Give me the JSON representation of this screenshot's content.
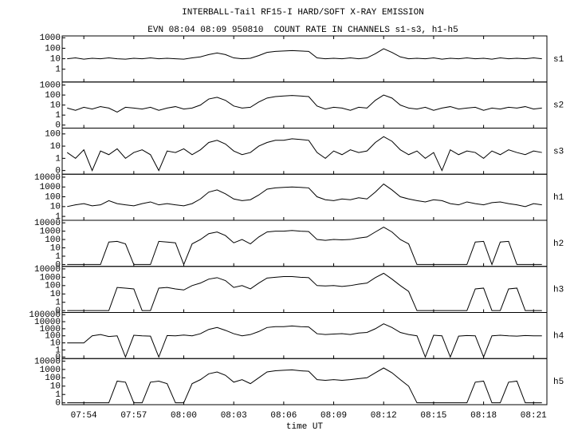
{
  "chart_data": [
    {
      "type": "line",
      "title": "INTERBALL-Tail RF15-I HARD/SOFT X-RAY EMISSION",
      "subtitle": "EVN 08:04 08:09 950810  COUNT RATE IN CHANNELS s1-s3, h1-h5",
      "label": "s1",
      "color": "#000000",
      "log": true,
      "x": [
        53,
        53.5,
        54,
        54.5,
        55,
        55.5,
        56,
        56.5,
        57,
        57.5,
        58,
        58.5,
        59,
        59.5,
        60,
        60.5,
        61,
        61.5,
        62,
        62.5,
        63,
        63.5,
        64,
        64.5,
        65,
        65.5,
        66,
        66.5,
        67,
        67.5,
        68,
        68.5,
        69,
        69.5,
        70,
        70.5,
        71,
        71.5,
        72,
        72.5,
        73,
        73.5,
        74,
        74.5,
        75,
        75.5,
        76,
        76.5,
        77,
        77.5,
        78,
        78.5,
        79,
        79.5,
        80,
        80.5,
        81,
        81.5
      ],
      "values": [
        10,
        12,
        9,
        11,
        10,
        12,
        10,
        9,
        11,
        10,
        12,
        10,
        11,
        10,
        9,
        12,
        15,
        25,
        35,
        25,
        12,
        10,
        11,
        20,
        40,
        50,
        55,
        60,
        55,
        50,
        12,
        10,
        11,
        10,
        12,
        10,
        12,
        30,
        90,
        40,
        15,
        10,
        11,
        10,
        12,
        9,
        11,
        10,
        12,
        10,
        11,
        9,
        12,
        10,
        11,
        10,
        12,
        10
      ],
      "xlim": [
        52.7,
        81.8
      ],
      "ylim": [
        0.06,
        1500
      ],
      "yticks": [
        1,
        10,
        100,
        1000
      ]
    },
    {
      "type": "line",
      "label": "s2",
      "color": "#000000",
      "log": true,
      "x": [
        53,
        53.5,
        54,
        54.5,
        55,
        55.5,
        56,
        56.5,
        57,
        57.5,
        58,
        58.5,
        59,
        59.5,
        60,
        60.5,
        61,
        61.5,
        62,
        62.5,
        63,
        63.5,
        64,
        64.5,
        65,
        65.5,
        66,
        66.5,
        67,
        67.5,
        68,
        68.5,
        69,
        69.5,
        70,
        70.5,
        71,
        71.5,
        72,
        72.5,
        73,
        73.5,
        74,
        74.5,
        75,
        75.5,
        76,
        76.5,
        77,
        77.5,
        78,
        78.5,
        79,
        79.5,
        80,
        80.5,
        81,
        81.5
      ],
      "values": [
        5,
        3,
        6,
        4,
        7,
        5,
        2,
        6,
        5,
        4,
        6,
        3,
        5,
        7,
        4,
        5,
        10,
        40,
        60,
        30,
        8,
        5,
        6,
        20,
        50,
        70,
        80,
        90,
        80,
        70,
        8,
        4,
        6,
        5,
        3,
        6,
        5,
        30,
        100,
        50,
        10,
        5,
        4,
        6,
        3,
        5,
        7,
        4,
        5,
        6,
        3,
        5,
        4,
        6,
        5,
        7,
        4,
        5
      ],
      "xlim": [
        52.7,
        81.8
      ],
      "ylim": [
        0.05,
        2000
      ],
      "yticks": [
        {
          "value": 0.1,
          "label": "0"
        },
        1,
        10,
        100,
        1000
      ]
    },
    {
      "type": "line",
      "label": "s3",
      "color": "#000000",
      "log": true,
      "x": [
        53,
        53.5,
        54,
        54.5,
        55,
        55.5,
        56,
        56.5,
        57,
        57.5,
        58,
        58.5,
        59,
        59.5,
        60,
        60.5,
        61,
        61.5,
        62,
        62.5,
        63,
        63.5,
        64,
        64.5,
        65,
        65.5,
        66,
        66.5,
        67,
        67.5,
        68,
        68.5,
        69,
        69.5,
        70,
        70.5,
        71,
        71.5,
        72,
        72.5,
        73,
        73.5,
        74,
        74.5,
        75,
        75.5,
        76,
        76.5,
        77,
        77.5,
        78,
        78.5,
        79,
        79.5,
        80,
        80.5,
        81,
        81.5
      ],
      "values": [
        3,
        1,
        5,
        0.1,
        4,
        2,
        6,
        1,
        3,
        5,
        2,
        0.1,
        4,
        3,
        6,
        2,
        5,
        20,
        30,
        15,
        4,
        2,
        3,
        10,
        20,
        30,
        30,
        40,
        35,
        30,
        3,
        1,
        4,
        2,
        5,
        3,
        4,
        20,
        60,
        25,
        5,
        2,
        4,
        1,
        3,
        0.1,
        5,
        2,
        4,
        3,
        1,
        4,
        2,
        5,
        3,
        2,
        4,
        3
      ],
      "xlim": [
        52.7,
        81.8
      ],
      "ylim": [
        0.05,
        300
      ],
      "yticks": [
        {
          "value": 0.1,
          "label": "0"
        },
        1,
        10,
        100
      ]
    },
    {
      "type": "line",
      "label": "h1",
      "color": "#000000",
      "log": true,
      "x": [
        53,
        53.5,
        54,
        54.5,
        55,
        55.5,
        56,
        56.5,
        57,
        57.5,
        58,
        58.5,
        59,
        59.5,
        60,
        60.5,
        61,
        61.5,
        62,
        62.5,
        63,
        63.5,
        64,
        64.5,
        65,
        65.5,
        66,
        66.5,
        67,
        67.5,
        68,
        68.5,
        69,
        69.5,
        70,
        70.5,
        71,
        71.5,
        72,
        72.5,
        73,
        73.5,
        74,
        74.5,
        75,
        75.5,
        76,
        76.5,
        77,
        77.5,
        78,
        78.5,
        79,
        79.5,
        80,
        80.5,
        81,
        81.5
      ],
      "values": [
        10,
        15,
        20,
        12,
        15,
        40,
        20,
        15,
        12,
        20,
        30,
        15,
        20,
        15,
        12,
        20,
        60,
        300,
        500,
        200,
        60,
        40,
        50,
        150,
        600,
        800,
        900,
        1000,
        900,
        800,
        100,
        50,
        40,
        60,
        50,
        80,
        60,
        300,
        2000,
        500,
        100,
        60,
        40,
        30,
        50,
        40,
        20,
        15,
        30,
        20,
        15,
        25,
        30,
        20,
        15,
        10,
        20,
        15
      ],
      "xlim": [
        52.7,
        81.8
      ],
      "ylim": [
        0.4,
        20000
      ],
      "yticks": [
        1,
        10,
        100,
        1000,
        10000
      ]
    },
    {
      "type": "line",
      "label": "h2",
      "color": "#000000",
      "log": true,
      "x": [
        53,
        53.5,
        54,
        54.5,
        55,
        55.5,
        56,
        56.5,
        57,
        57.5,
        58,
        58.5,
        59,
        59.5,
        60,
        60.5,
        61,
        61.5,
        62,
        62.5,
        63,
        63.5,
        64,
        64.5,
        65,
        65.5,
        66,
        66.5,
        67,
        67.5,
        68,
        68.5,
        69,
        69.5,
        70,
        70.5,
        71,
        71.5,
        72,
        72.5,
        73,
        73.5,
        74,
        74.5,
        75,
        75.5,
        76,
        76.5,
        77,
        77.5,
        78,
        78.5,
        79,
        79.5,
        80,
        80.5,
        81,
        81.5
      ],
      "values": [
        0.1,
        0.1,
        0.1,
        0.1,
        0.1,
        50,
        60,
        30,
        0.1,
        0.1,
        0.1,
        60,
        50,
        40,
        0.1,
        30,
        100,
        500,
        800,
        300,
        40,
        100,
        30,
        200,
        800,
        1000,
        1000,
        1200,
        1000,
        900,
        100,
        80,
        100,
        90,
        100,
        150,
        200,
        800,
        3000,
        800,
        100,
        30,
        0.1,
        0.1,
        0.1,
        0.1,
        0.1,
        0.1,
        0.1,
        50,
        60,
        0.1,
        50,
        60,
        0.1,
        0.1,
        0.1,
        0.1
      ],
      "xlim": [
        52.7,
        81.8
      ],
      "ylim": [
        0.06,
        20000
      ],
      "yticks": [
        {
          "value": 0.1,
          "label": "0"
        },
        1,
        10,
        100,
        1000,
        10000
      ]
    },
    {
      "type": "line",
      "label": "h3",
      "color": "#000000",
      "log": true,
      "x": [
        53,
        53.5,
        54,
        54.5,
        55,
        55.5,
        56,
        56.5,
        57,
        57.5,
        58,
        58.5,
        59,
        59.5,
        60,
        60.5,
        61,
        61.5,
        62,
        62.5,
        63,
        63.5,
        64,
        64.5,
        65,
        65.5,
        66,
        66.5,
        67,
        67.5,
        68,
        68.5,
        69,
        69.5,
        70,
        70.5,
        71,
        71.5,
        72,
        72.5,
        73,
        73.5,
        74,
        74.5,
        75,
        75.5,
        76,
        76.5,
        77,
        77.5,
        78,
        78.5,
        79,
        79.5,
        80,
        80.5,
        81,
        81.5
      ],
      "values": [
        0.1,
        0.1,
        0.1,
        0.1,
        0.1,
        0.1,
        60,
        50,
        40,
        0.1,
        0.1,
        50,
        60,
        40,
        30,
        100,
        200,
        600,
        900,
        400,
        60,
        100,
        40,
        200,
        800,
        1000,
        1200,
        1200,
        1000,
        900,
        100,
        90,
        100,
        80,
        100,
        150,
        200,
        900,
        3000,
        600,
        100,
        20,
        0.1,
        0.1,
        0.1,
        0.1,
        0.1,
        0.1,
        0.1,
        40,
        50,
        0.1,
        0.1,
        40,
        50,
        0.1,
        0.1,
        0.1
      ],
      "xlim": [
        52.7,
        81.8
      ],
      "ylim": [
        0.06,
        20000
      ],
      "yticks": [
        {
          "value": 0.1,
          "label": "0"
        },
        1,
        10,
        100,
        1000,
        10000
      ]
    },
    {
      "type": "line",
      "label": "h4",
      "color": "#000000",
      "log": true,
      "x": [
        53,
        53.5,
        54,
        54.5,
        55,
        55.5,
        56,
        56.5,
        57,
        57.5,
        58,
        58.5,
        59,
        59.5,
        60,
        60.5,
        61,
        61.5,
        62,
        62.5,
        63,
        63.5,
        64,
        64.5,
        65,
        65.5,
        66,
        66.5,
        67,
        67.5,
        68,
        68.5,
        69,
        69.5,
        70,
        70.5,
        71,
        71.5,
        72,
        72.5,
        73,
        73.5,
        74,
        74.5,
        75,
        75.5,
        76,
        76.5,
        77,
        77.5,
        78,
        78.5,
        79,
        79.5,
        80,
        80.5,
        81,
        81.5
      ],
      "values": [
        10,
        10,
        10,
        100,
        150,
        80,
        100,
        0.1,
        120,
        100,
        90,
        0.1,
        110,
        100,
        130,
        100,
        200,
        800,
        1500,
        600,
        200,
        100,
        150,
        400,
        1500,
        2000,
        2000,
        2500,
        2000,
        1800,
        200,
        150,
        180,
        200,
        150,
        250,
        300,
        1000,
        5000,
        1500,
        300,
        150,
        100,
        0.1,
        120,
        100,
        0.1,
        90,
        110,
        100,
        0.1,
        100,
        120,
        100,
        90,
        110,
        100,
        100
      ],
      "xlim": [
        52.7,
        81.8
      ],
      "ylim": [
        0.06,
        200000
      ],
      "yticks": [
        {
          "value": 0.1,
          "label": "0"
        },
        1,
        10,
        100,
        1000,
        10000,
        100000
      ]
    },
    {
      "type": "line",
      "label": "h5",
      "color": "#000000",
      "log": true,
      "x": [
        53,
        53.5,
        54,
        54.5,
        55,
        55.5,
        56,
        56.5,
        57,
        57.5,
        58,
        58.5,
        59,
        59.5,
        60,
        60.5,
        61,
        61.5,
        62,
        62.5,
        63,
        63.5,
        64,
        64.5,
        65,
        65.5,
        66,
        66.5,
        67,
        67.5,
        68,
        68.5,
        69,
        69.5,
        70,
        70.5,
        71,
        71.5,
        72,
        72.5,
        73,
        73.5,
        74,
        74.5,
        75,
        75.5,
        76,
        76.5,
        77,
        77.5,
        78,
        78.5,
        79,
        79.5,
        80,
        80.5,
        81,
        81.5
      ],
      "values": [
        0.1,
        0.1,
        0.1,
        0.1,
        0.1,
        0.1,
        40,
        30,
        0.1,
        0.1,
        30,
        40,
        20,
        0.1,
        0.1,
        20,
        60,
        300,
        500,
        200,
        30,
        60,
        20,
        100,
        500,
        700,
        800,
        900,
        700,
        600,
        60,
        50,
        60,
        50,
        60,
        80,
        100,
        400,
        1500,
        400,
        60,
        10,
        0.1,
        0.1,
        0.1,
        0.1,
        0.1,
        0.1,
        0.1,
        30,
        40,
        0.1,
        0.1,
        30,
        40,
        0.1,
        0.1,
        0.1
      ],
      "xlim": [
        52.7,
        81.8
      ],
      "ylim": [
        0.06,
        20000
      ],
      "yticks": [
        {
          "value": 0.1,
          "label": "0"
        },
        1,
        10,
        100,
        1000,
        10000
      ],
      "xlabel": "time UT",
      "xticks": [
        {
          "value": 54,
          "label": "07:54"
        },
        {
          "value": 57,
          "label": "07:57"
        },
        {
          "value": 60,
          "label": "08:00"
        },
        {
          "value": 63,
          "label": "08:03"
        },
        {
          "value": 66,
          "label": "08:06"
        },
        {
          "value": 69,
          "label": "08:09"
        },
        {
          "value": 72,
          "label": "08:12"
        },
        {
          "value": 75,
          "label": "08:15"
        },
        {
          "value": 78,
          "label": "08:18"
        },
        {
          "value": 81,
          "label": "08:21"
        }
      ]
    }
  ]
}
